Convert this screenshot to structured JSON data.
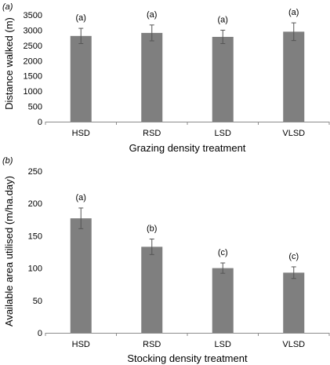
{
  "chart_data": [
    {
      "type": "bar",
      "panel_label": "(a)",
      "categories": [
        "HSD",
        "RSD",
        "LSD",
        "VLSD"
      ],
      "values": [
        2810,
        2910,
        2780,
        2950
      ],
      "errors": [
        250,
        260,
        220,
        290
      ],
      "significance": [
        "(a)",
        "(a)",
        "(a)",
        "(a)"
      ],
      "xlabel": "Grazing density treatment",
      "ylabel": "Distance walked (m)",
      "ylim": [
        0,
        3500
      ],
      "yticks": [
        "0",
        "500",
        "1000",
        "1500",
        "2000",
        "2500",
        "3000",
        "3500"
      ],
      "grid": false,
      "bar_color": "#7f7f7f"
    },
    {
      "type": "bar",
      "panel_label": "(b)",
      "categories": [
        "HSD",
        "RSD",
        "LSD",
        "VLSD"
      ],
      "values": [
        177,
        133,
        100,
        93
      ],
      "errors": [
        16,
        12,
        8,
        9
      ],
      "significance": [
        "(a)",
        "(b)",
        "(c)",
        "(c)"
      ],
      "xlabel": "Stocking density treatment",
      "ylabel": "Available area utilised (m/ha.day)",
      "ylim": [
        0,
        250
      ],
      "yticks": [
        "0",
        "50",
        "100",
        "150",
        "200",
        "250"
      ],
      "grid": false,
      "bar_color": "#7f7f7f"
    }
  ]
}
